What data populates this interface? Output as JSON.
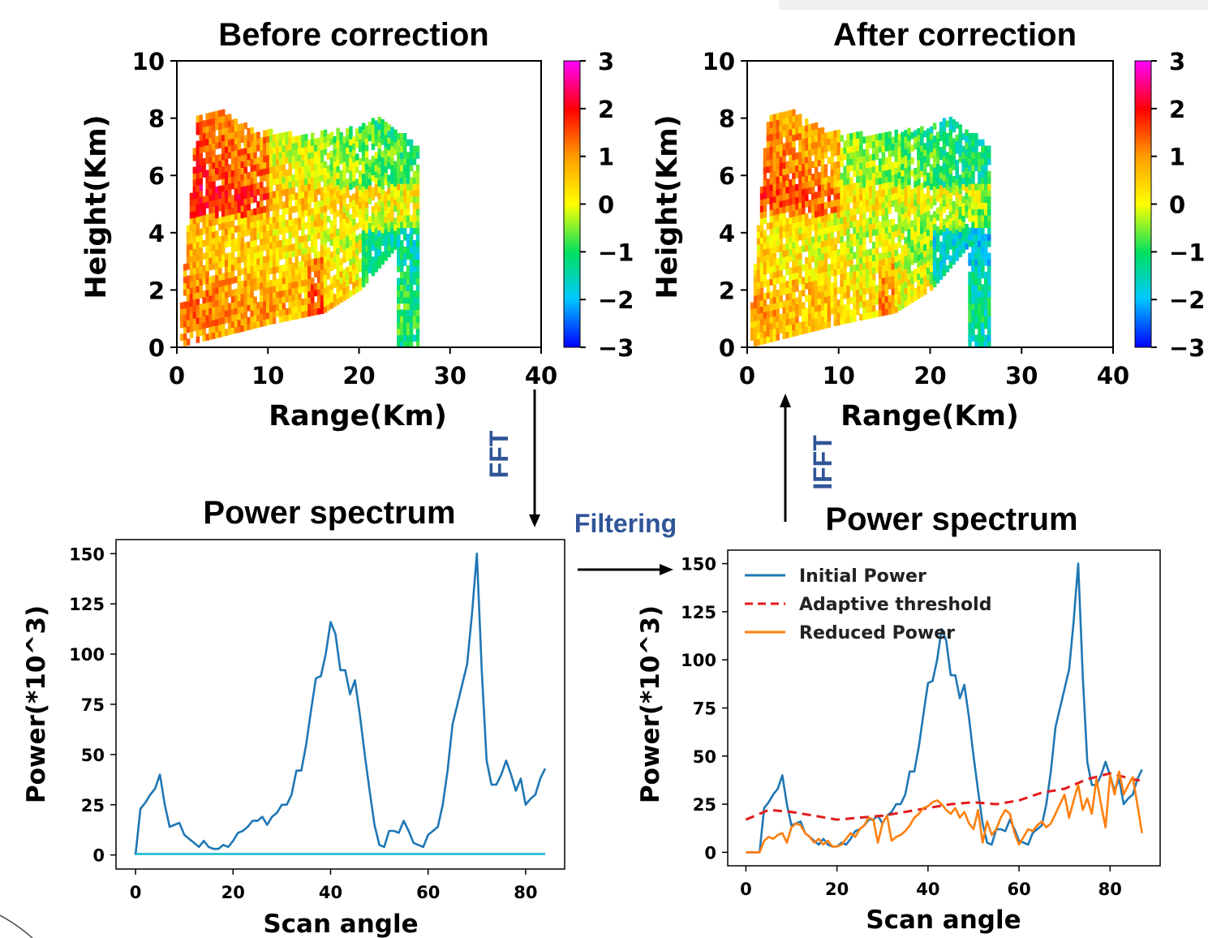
{
  "chart_data": [
    {
      "type": "heatmap",
      "title": "Before correction",
      "xlabel": "Range(Km)",
      "ylabel": "Height(Km)",
      "xlim": [
        0,
        40
      ],
      "ylim": [
        0,
        10
      ],
      "xticks": [
        "0",
        "10",
        "20",
        "30",
        "40"
      ],
      "yticks": [
        "0",
        "2",
        "4",
        "6",
        "8",
        "10"
      ],
      "colorbar": {
        "ticks": [
          "3",
          "2",
          "1",
          "0",
          "−1",
          "−2",
          "−3"
        ],
        "range": [
          -3,
          3
        ]
      },
      "max_range_profile": [
        [
          0,
          0.0
        ],
        [
          2,
          7.9
        ],
        [
          5,
          8.1
        ],
        [
          8,
          7.5
        ],
        [
          14,
          7.3
        ],
        [
          20,
          7.6
        ],
        [
          22,
          7.9
        ],
        [
          26.5,
          6.9
        ]
      ],
      "min_height_profile": [
        [
          0,
          0.0
        ],
        [
          10,
          0.8
        ],
        [
          16,
          1.2
        ],
        [
          20,
          2.0
        ],
        [
          24,
          3.5
        ]
      ]
    },
    {
      "type": "heatmap",
      "title": "After correction",
      "xlabel": "Range(Km)",
      "ylabel": "Height(Km)",
      "xlim": [
        0,
        40
      ],
      "ylim": [
        0,
        10
      ],
      "xticks": [
        "0",
        "10",
        "20",
        "30",
        "40"
      ],
      "yticks": [
        "0",
        "2",
        "4",
        "6",
        "8",
        "10"
      ],
      "colorbar": {
        "ticks": [
          "3",
          "2",
          "1",
          "0",
          "−1",
          "−2",
          "−3"
        ],
        "range": [
          -3,
          3
        ]
      },
      "max_range_profile": [
        [
          0,
          0.0
        ],
        [
          2,
          7.9
        ],
        [
          5,
          8.1
        ],
        [
          8,
          7.5
        ],
        [
          14,
          7.3
        ],
        [
          20,
          7.6
        ],
        [
          22,
          7.9
        ],
        [
          26.5,
          6.9
        ]
      ],
      "min_height_profile": [
        [
          0,
          0.0
        ],
        [
          10,
          0.8
        ],
        [
          16,
          1.2
        ],
        [
          20,
          2.0
        ],
        [
          24,
          3.5
        ]
      ]
    },
    {
      "type": "line",
      "title": "Power spectrum",
      "xlabel": "Scan angle",
      "ylabel": "Power(*10^3)",
      "xlim": [
        -4,
        88
      ],
      "ylim": [
        -7,
        157
      ],
      "xticks": [
        0,
        20,
        40,
        60,
        80
      ],
      "yticks": [
        0,
        25,
        50,
        75,
        100,
        125,
        150
      ],
      "series": [
        {
          "color": "#1f77b4",
          "x": [
            0,
            1,
            2,
            3,
            4,
            5,
            6,
            7,
            8,
            9,
            10,
            11,
            12,
            13,
            14,
            15,
            16,
            17,
            18,
            19,
            20,
            21,
            22,
            23,
            24,
            25,
            26,
            27,
            28,
            29,
            30,
            31,
            32,
            33,
            34,
            35,
            36,
            37,
            38,
            39,
            40,
            41,
            42,
            43,
            44,
            45,
            46,
            47,
            48,
            49,
            50,
            51,
            52,
            53,
            54,
            55,
            56,
            57,
            58,
            59,
            60,
            61,
            62,
            63,
            64,
            65,
            66,
            67,
            68,
            69,
            70,
            71,
            72,
            73,
            74,
            75,
            76,
            77,
            78,
            79,
            80,
            81,
            82,
            83,
            84
          ],
          "y": [
            0,
            23,
            26,
            30,
            33,
            40,
            25,
            14,
            15,
            16,
            10,
            8,
            6,
            4,
            7,
            4,
            3,
            3,
            5,
            4,
            7,
            11,
            12,
            14,
            17,
            17,
            19,
            15,
            19,
            21,
            25,
            25,
            30,
            42,
            42,
            55,
            72,
            88,
            89,
            100,
            116,
            110,
            92,
            92,
            80,
            87,
            70,
            50,
            32,
            15,
            5,
            4,
            12,
            12,
            11,
            17,
            12,
            6,
            5,
            4,
            10,
            12,
            14,
            25,
            42,
            65,
            75,
            85,
            95,
            120,
            150,
            92,
            47,
            35,
            35,
            40,
            47,
            40,
            32,
            38,
            25,
            28,
            30,
            38,
            43
          ]
        },
        {
          "color": "#17becf",
          "x": [
            0,
            84
          ],
          "y": [
            0.5,
            0.5
          ]
        }
      ]
    },
    {
      "type": "line",
      "title": "Power spectrum",
      "xlabel": "Scan angle",
      "ylabel": "Power(*10^3)",
      "xlim": [
        -4,
        91
      ],
      "ylim": [
        -7,
        157
      ],
      "xticks": [
        0,
        20,
        40,
        60,
        80
      ],
      "yticks": [
        0,
        25,
        50,
        75,
        100,
        125,
        150
      ],
      "legend": {
        "position": "top-left"
      },
      "series": [
        {
          "name": "Initial Power",
          "color": "#1f77b4",
          "style": "solid",
          "x": [
            0,
            1,
            2,
            3,
            4,
            5,
            6,
            7,
            8,
            9,
            10,
            11,
            12,
            13,
            14,
            15,
            16,
            17,
            18,
            19,
            20,
            21,
            22,
            23,
            24,
            25,
            26,
            27,
            28,
            29,
            30,
            31,
            32,
            33,
            34,
            35,
            36,
            37,
            38,
            39,
            40,
            41,
            42,
            43,
            44,
            45,
            46,
            47,
            48,
            49,
            50,
            51,
            52,
            53,
            54,
            55,
            56,
            57,
            58,
            59,
            60,
            61,
            62,
            63,
            64,
            65,
            66,
            67,
            68,
            69,
            70,
            71,
            72,
            73,
            74,
            75,
            76,
            77,
            78,
            79,
            80,
            81,
            82,
            83,
            84,
            85,
            86,
            87
          ],
          "y": [
            0,
            0,
            0,
            0,
            23,
            26,
            30,
            33,
            40,
            25,
            14,
            15,
            16,
            10,
            8,
            6,
            4,
            7,
            4,
            3,
            3,
            5,
            4,
            7,
            11,
            12,
            14,
            17,
            17,
            19,
            15,
            19,
            21,
            25,
            25,
            30,
            42,
            42,
            55,
            72,
            88,
            89,
            100,
            116,
            110,
            92,
            92,
            80,
            87,
            70,
            50,
            32,
            15,
            5,
            4,
            12,
            12,
            11,
            17,
            12,
            6,
            5,
            4,
            10,
            12,
            14,
            25,
            42,
            65,
            75,
            85,
            95,
            120,
            150,
            92,
            47,
            35,
            35,
            40,
            47,
            40,
            32,
            38,
            25,
            28,
            30,
            38,
            43
          ]
        },
        {
          "name": "Adaptive threshold",
          "color": "#e41a1c",
          "style": "dashed",
          "x": [
            0,
            5,
            10,
            15,
            20,
            25,
            30,
            35,
            40,
            45,
            50,
            55,
            60,
            65,
            70,
            75,
            80,
            85,
            87
          ],
          "y": [
            17,
            22,
            21,
            19,
            17,
            18,
            19,
            21,
            23,
            25,
            26,
            25,
            27,
            31,
            33,
            38,
            41,
            38,
            37
          ]
        },
        {
          "name": "Reduced Power",
          "color": "#ff7f0e",
          "style": "solid",
          "x": [
            0,
            2,
            3,
            4,
            5,
            6,
            7,
            8,
            9,
            10,
            11,
            12,
            13,
            14,
            15,
            16,
            17,
            18,
            19,
            20,
            21,
            22,
            23,
            24,
            25,
            26,
            27,
            28,
            29,
            30,
            31,
            32,
            33,
            34,
            35,
            36,
            37,
            38,
            39,
            40,
            41,
            42,
            43,
            44,
            45,
            46,
            47,
            48,
            49,
            50,
            51,
            52,
            53,
            54,
            55,
            56,
            57,
            58,
            59,
            60,
            61,
            62,
            63,
            64,
            65,
            66,
            67,
            68,
            69,
            70,
            71,
            72,
            73,
            74,
            75,
            76,
            77,
            78,
            79,
            80,
            81,
            82,
            83,
            84,
            85,
            86,
            87
          ],
          "y": [
            0,
            0,
            0,
            6,
            8,
            7,
            9,
            10,
            5,
            13,
            15,
            14,
            10,
            8,
            5,
            7,
            4,
            6,
            3,
            3,
            4,
            7,
            10,
            8,
            12,
            14,
            18,
            17,
            5,
            15,
            19,
            6,
            8,
            9,
            11,
            14,
            18,
            20,
            23,
            24,
            26,
            27,
            25,
            22,
            20,
            23,
            18,
            21,
            15,
            12,
            22,
            5,
            16,
            9,
            12,
            18,
            22,
            20,
            10,
            4,
            8,
            12,
            11,
            14,
            16,
            13,
            15,
            20,
            25,
            30,
            18,
            27,
            35,
            22,
            28,
            20,
            38,
            25,
            13,
            40,
            30,
            42,
            30,
            35,
            39,
            25,
            10
          ]
        }
      ]
    }
  ],
  "steps": {
    "fft": "FFT",
    "filtering": "Filtering",
    "ifft": "IFFT"
  }
}
